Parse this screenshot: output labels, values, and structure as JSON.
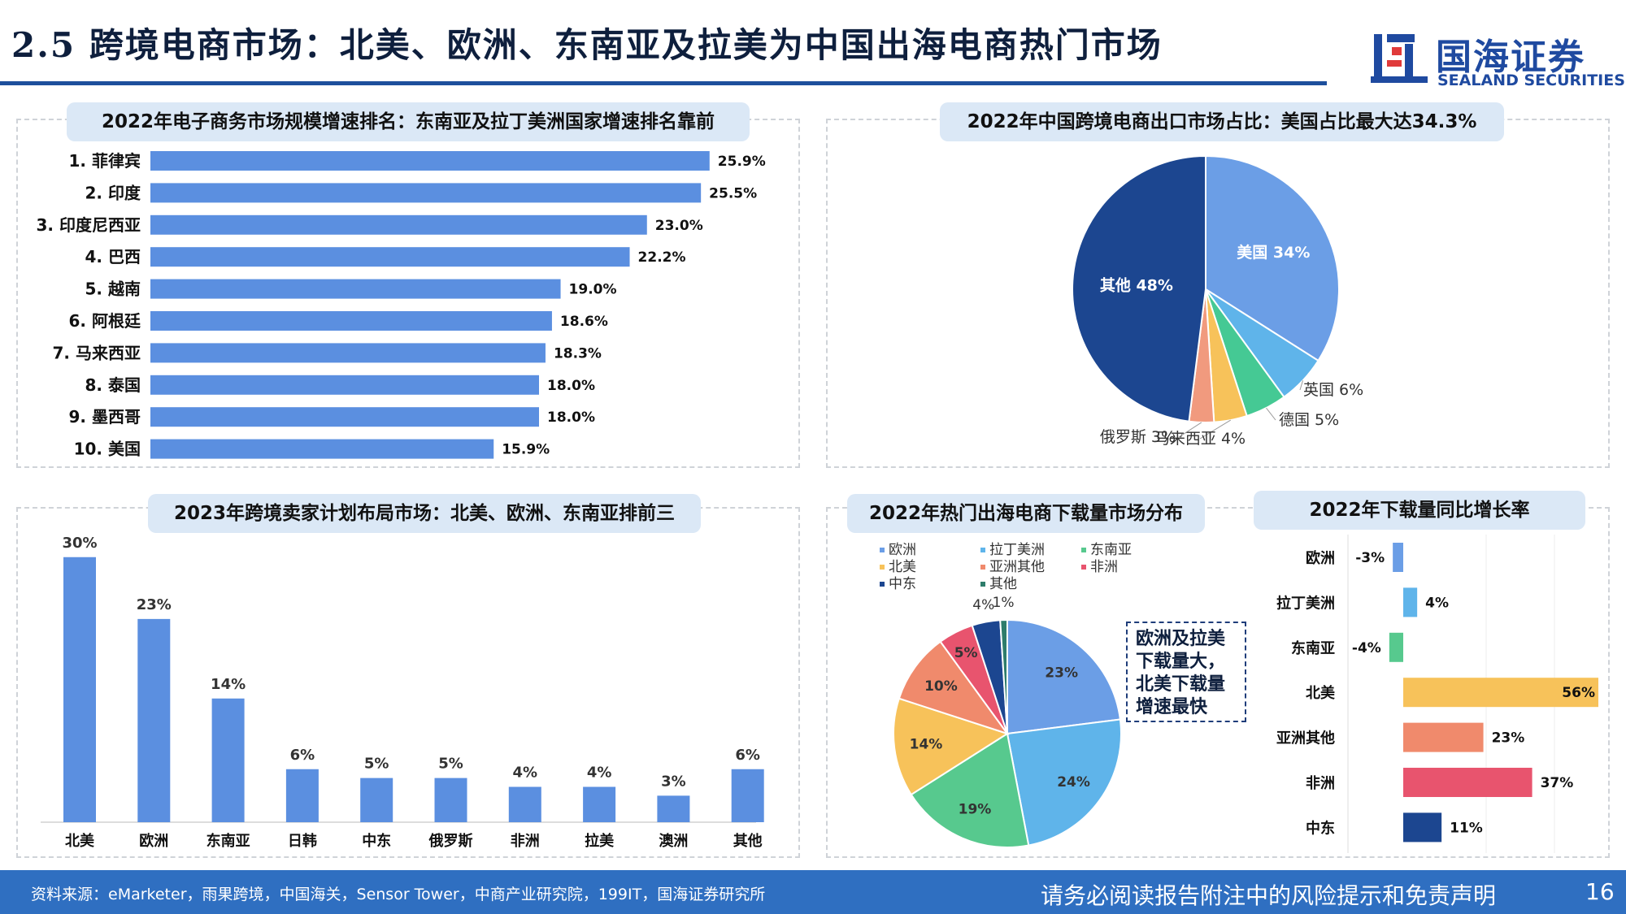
{
  "header": {
    "title": "2.5 跨境电商市场：北美、欧洲、东南亚及拉美为中国出海电商热门市场",
    "logo_cn": "国海证券",
    "logo_en": "SEALAND SECURITIES"
  },
  "panels": {
    "p1_title": "2022年电子商务市场规模增速排名：东南亚及拉丁美洲国家增速排名靠前",
    "p2_title": "2022年中国跨境电商出口市场占比：美国占比最大达34.3%",
    "p3_title": "2023年跨境卖家计划布局市场：北美、欧洲、东南亚排前三",
    "p4_title": "2022年热门出海电商下载量市场分布",
    "p5_title": "2022年下载量同比增长率",
    "callout": "欧洲及拉美下载量大，北美下载量增速最快"
  },
  "footer": {
    "source": "资料来源：eMarketer，雨果跨境，中国海关，Sensor Tower，中商产业研究院，199IT，国海证券研究所",
    "disclaimer": "请务必阅读报告附注中的风险提示和免责声明",
    "page": "16"
  },
  "colors": {
    "bar_blue": "#5b8fe0",
    "title_rule": "#1d4f9c",
    "footer": "#2f6fc1",
    "panel_title_bg": "#dbe8f6"
  },
  "chart_data": [
    {
      "id": "growth_rank",
      "type": "bar",
      "orientation": "horizontal",
      "categories": [
        "1. 菲律宾",
        "2. 印度",
        "3. 印度尼西亚",
        "4. 巴西",
        "5. 越南",
        "6. 阿根廷",
        "7. 马来西亚",
        "8. 泰国",
        "9. 墨西哥",
        "10. 美国"
      ],
      "values": [
        25.9,
        25.5,
        23.0,
        22.2,
        19.0,
        18.6,
        18.3,
        18.0,
        18.0,
        15.9
      ],
      "labels": [
        "25.9%",
        "25.5%",
        "23.0%",
        "22.2%",
        "19.0%",
        "18.6%",
        "18.3%",
        "18.0%",
        "18.0%",
        "15.9%"
      ],
      "xlim": [
        0,
        27
      ]
    },
    {
      "id": "export_share",
      "type": "pie",
      "categories": [
        "美国",
        "英国",
        "德国",
        "马来西亚",
        "俄罗斯",
        "其他"
      ],
      "values": [
        34,
        6,
        5,
        4,
        3,
        48
      ],
      "labels": [
        "美国 34%",
        "英国 6%",
        "德国 5%",
        "马来西亚 4%",
        "俄罗斯 3%",
        "其他 48%"
      ],
      "colors": [
        "#6b9ee6",
        "#5fb4ea",
        "#45c994",
        "#f7c25a",
        "#f19a7e",
        "#1c4690"
      ]
    },
    {
      "id": "seller_plan",
      "type": "bar",
      "categories": [
        "北美",
        "欧洲",
        "东南亚",
        "日韩",
        "中东",
        "俄罗斯",
        "非洲",
        "拉美",
        "澳洲",
        "其他"
      ],
      "values": [
        30,
        23,
        14,
        6,
        5,
        5,
        4,
        4,
        3,
        6
      ],
      "labels": [
        "30%",
        "23%",
        "14%",
        "6%",
        "5%",
        "5%",
        "4%",
        "4%",
        "3%",
        "6%"
      ],
      "ylim": [
        0,
        32
      ]
    },
    {
      "id": "download_share",
      "type": "pie",
      "categories": [
        "欧洲",
        "拉丁美洲",
        "东南亚",
        "北美",
        "亚洲其他",
        "非洲",
        "中东",
        "其他"
      ],
      "values": [
        23,
        24,
        19,
        14,
        10,
        5,
        4,
        1
      ],
      "labels": [
        "23%",
        "24%",
        "19%",
        "14%",
        "10%",
        "5%",
        "4%",
        "1%"
      ],
      "colors": [
        "#6b9ee6",
        "#5fb4ea",
        "#57c98e",
        "#f7c25a",
        "#f08a6c",
        "#e8546e",
        "#1c4690",
        "#2e7d6b"
      ],
      "legend": "top"
    },
    {
      "id": "download_growth",
      "type": "bar",
      "orientation": "horizontal",
      "categories": [
        "欧洲",
        "拉丁美洲",
        "东南亚",
        "北美",
        "亚洲其他",
        "非洲",
        "中东"
      ],
      "values": [
        -3,
        4,
        -4,
        56,
        23,
        37,
        11
      ],
      "labels": [
        "-3%",
        "4%",
        "-4%",
        "56%",
        "23%",
        "37%",
        "11%"
      ],
      "colors": [
        "#6b9ee6",
        "#5fb4ea",
        "#57c98e",
        "#f7c25a",
        "#f08a6c",
        "#e8546e",
        "#1c4690"
      ],
      "xlim": [
        -10,
        56
      ]
    }
  ]
}
